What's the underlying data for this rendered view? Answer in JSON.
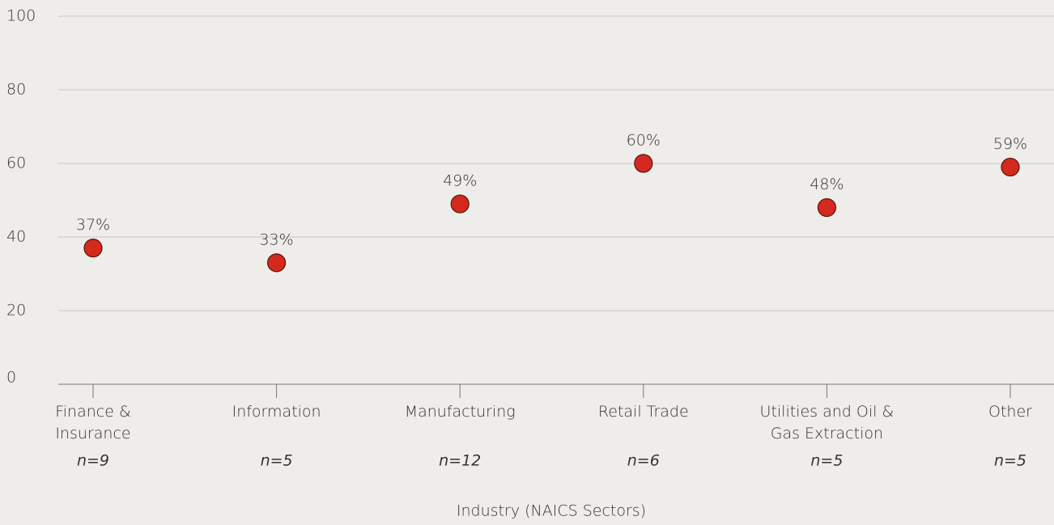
{
  "chart_data": {
    "type": "dot",
    "categories": [
      "Finance &\nInsurance",
      "Information",
      "Manufacturing",
      "Retail Trade",
      "Utilities and Oil &\nGas Extraction",
      "Other"
    ],
    "values": [
      37,
      33,
      49,
      60,
      48,
      59
    ],
    "value_labels": [
      "37%",
      "33%",
      "49%",
      "60%",
      "48%",
      "59%"
    ],
    "sample_sizes": [
      "n=9",
      "n=5",
      "n=12",
      "n=6",
      "n=5",
      "n=5"
    ],
    "color": "#d42a1e",
    "ylim": [
      0,
      100
    ],
    "yticks": [
      0,
      20,
      40,
      60,
      80,
      100
    ],
    "grid": true,
    "x_label": "Industry (NAICS Sectors)"
  }
}
